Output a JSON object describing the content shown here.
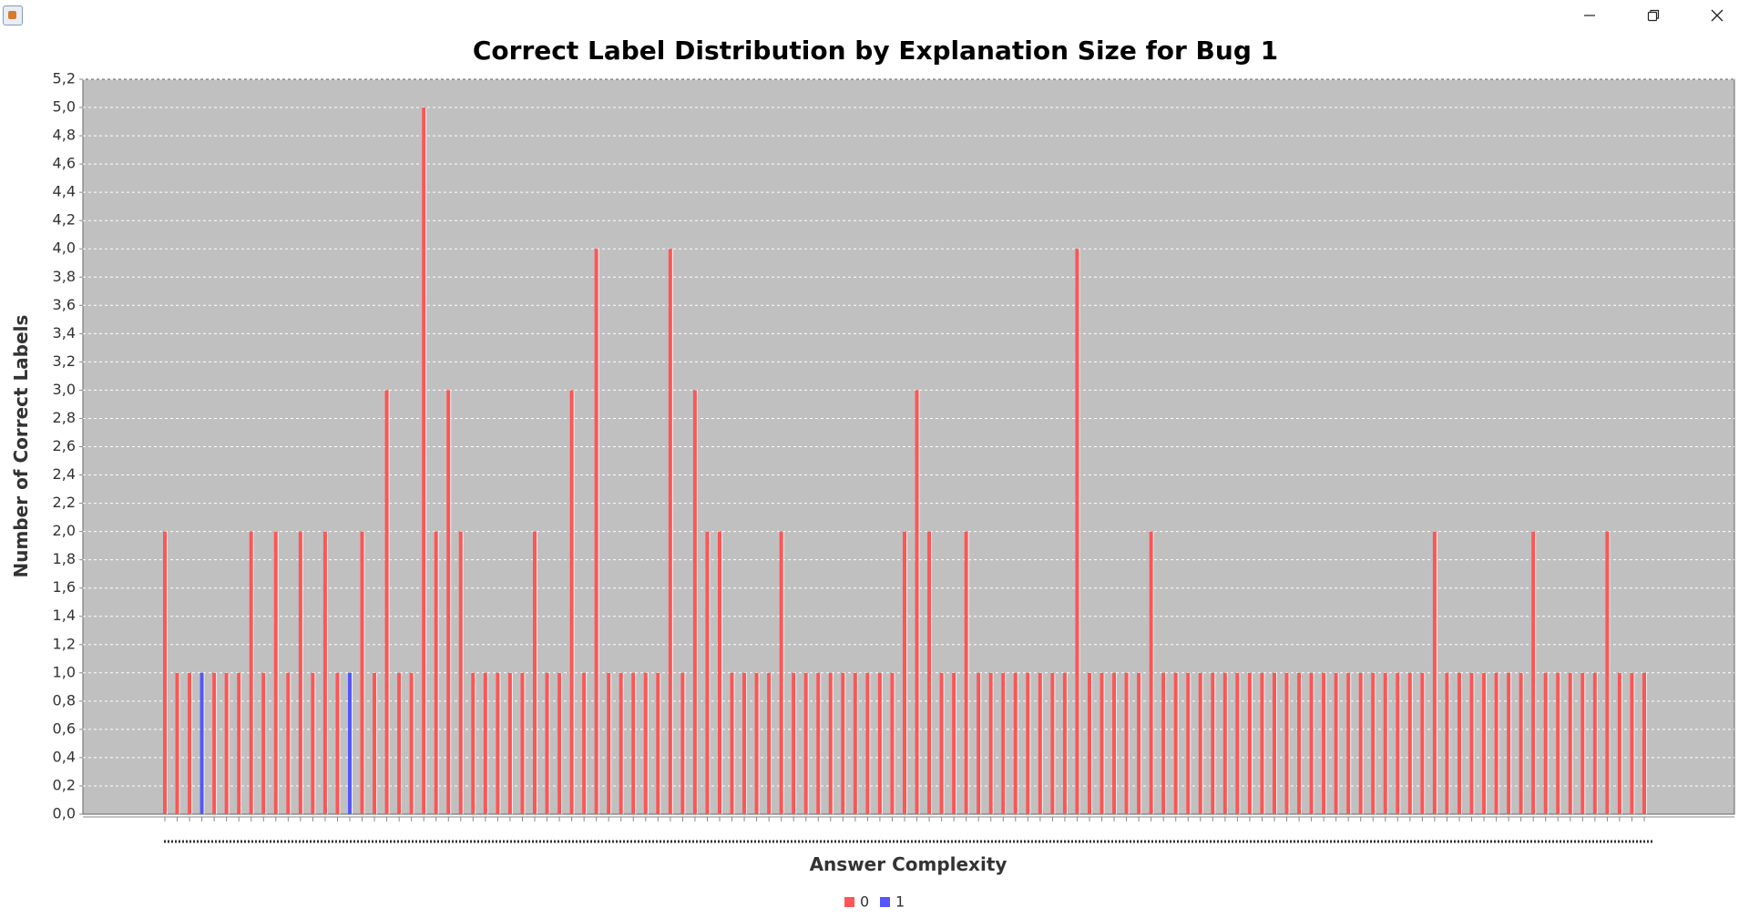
{
  "window": {
    "icon": "java-cup-icon",
    "controls": [
      "minimize-icon",
      "restore-icon",
      "close-icon"
    ]
  },
  "chart_data": {
    "type": "bar",
    "title": "Correct Label Distribution by Explanation Size for Bug 1",
    "xlabel": "Answer Complexity",
    "ylabel": "Number of Correct Labels",
    "ylim": [
      0,
      5.2
    ],
    "y_ticks": [
      "0,0",
      "0,2",
      "0,4",
      "0,6",
      "0,8",
      "1,0",
      "1,2",
      "1,4",
      "1,6",
      "1,8",
      "2,0",
      "2,2",
      "2,4",
      "2,6",
      "2,8",
      "3,0",
      "3,2",
      "3,4",
      "3,6",
      "3,8",
      "4,0",
      "4,2",
      "4,4",
      "4,6",
      "4,8",
      "5,0",
      "5,2"
    ],
    "grid": true,
    "legend_position": "bottom",
    "background_color": "#c0c0c0",
    "series": [
      {
        "name": "0",
        "color": "#ff5555",
        "values": [
          2,
          1,
          1,
          0,
          1,
          1,
          1,
          2,
          1,
          2,
          1,
          2,
          1,
          2,
          1,
          0,
          2,
          1,
          3,
          1,
          1,
          5,
          2,
          3,
          2,
          1,
          1,
          1,
          1,
          1,
          2,
          1,
          1,
          3,
          1,
          4,
          1,
          1,
          1,
          1,
          1,
          4,
          1,
          3,
          2,
          2,
          1,
          1,
          1,
          1,
          2,
          1,
          1,
          1,
          1,
          1,
          1,
          1,
          1,
          1,
          2,
          3,
          2,
          1,
          1,
          2,
          1,
          1,
          1,
          1,
          1,
          1,
          1,
          1,
          4,
          1,
          1,
          1,
          1,
          1,
          2,
          1,
          1,
          1,
          1,
          1,
          1,
          1,
          1,
          1,
          1,
          1,
          1,
          1,
          1,
          1,
          1,
          1,
          1,
          1,
          1,
          1,
          1,
          2,
          1,
          1,
          1,
          1,
          1,
          1,
          1,
          2,
          1,
          1,
          1,
          1,
          1,
          2,
          1,
          1,
          1
        ]
      },
      {
        "name": "1",
        "color": "#5555ff",
        "values": [
          0,
          0,
          0,
          1,
          0,
          0,
          0,
          0,
          0,
          0,
          0,
          0,
          0,
          0,
          0,
          1,
          0,
          0,
          0,
          0,
          0,
          0,
          0,
          0,
          0,
          0,
          0,
          0,
          0,
          0,
          0,
          0,
          0,
          0,
          0,
          0,
          0,
          0,
          0,
          0,
          0,
          0,
          0,
          0,
          0,
          0,
          0,
          0,
          0,
          0,
          0,
          0,
          0,
          0,
          0,
          0,
          0,
          0,
          0,
          0,
          0,
          0,
          0,
          0,
          0,
          0,
          0,
          0,
          0,
          0,
          0,
          0,
          0,
          0,
          0,
          0,
          0,
          0,
          0,
          0,
          0,
          0,
          0,
          0,
          0,
          0,
          0,
          0,
          0,
          0,
          0,
          0,
          0,
          0,
          0,
          0,
          0,
          0,
          0,
          0,
          0,
          0,
          0,
          0,
          0,
          0,
          0,
          0,
          0,
          0,
          0,
          0,
          0,
          0,
          0,
          0,
          0,
          0,
          0,
          0,
          0
        ]
      }
    ]
  }
}
